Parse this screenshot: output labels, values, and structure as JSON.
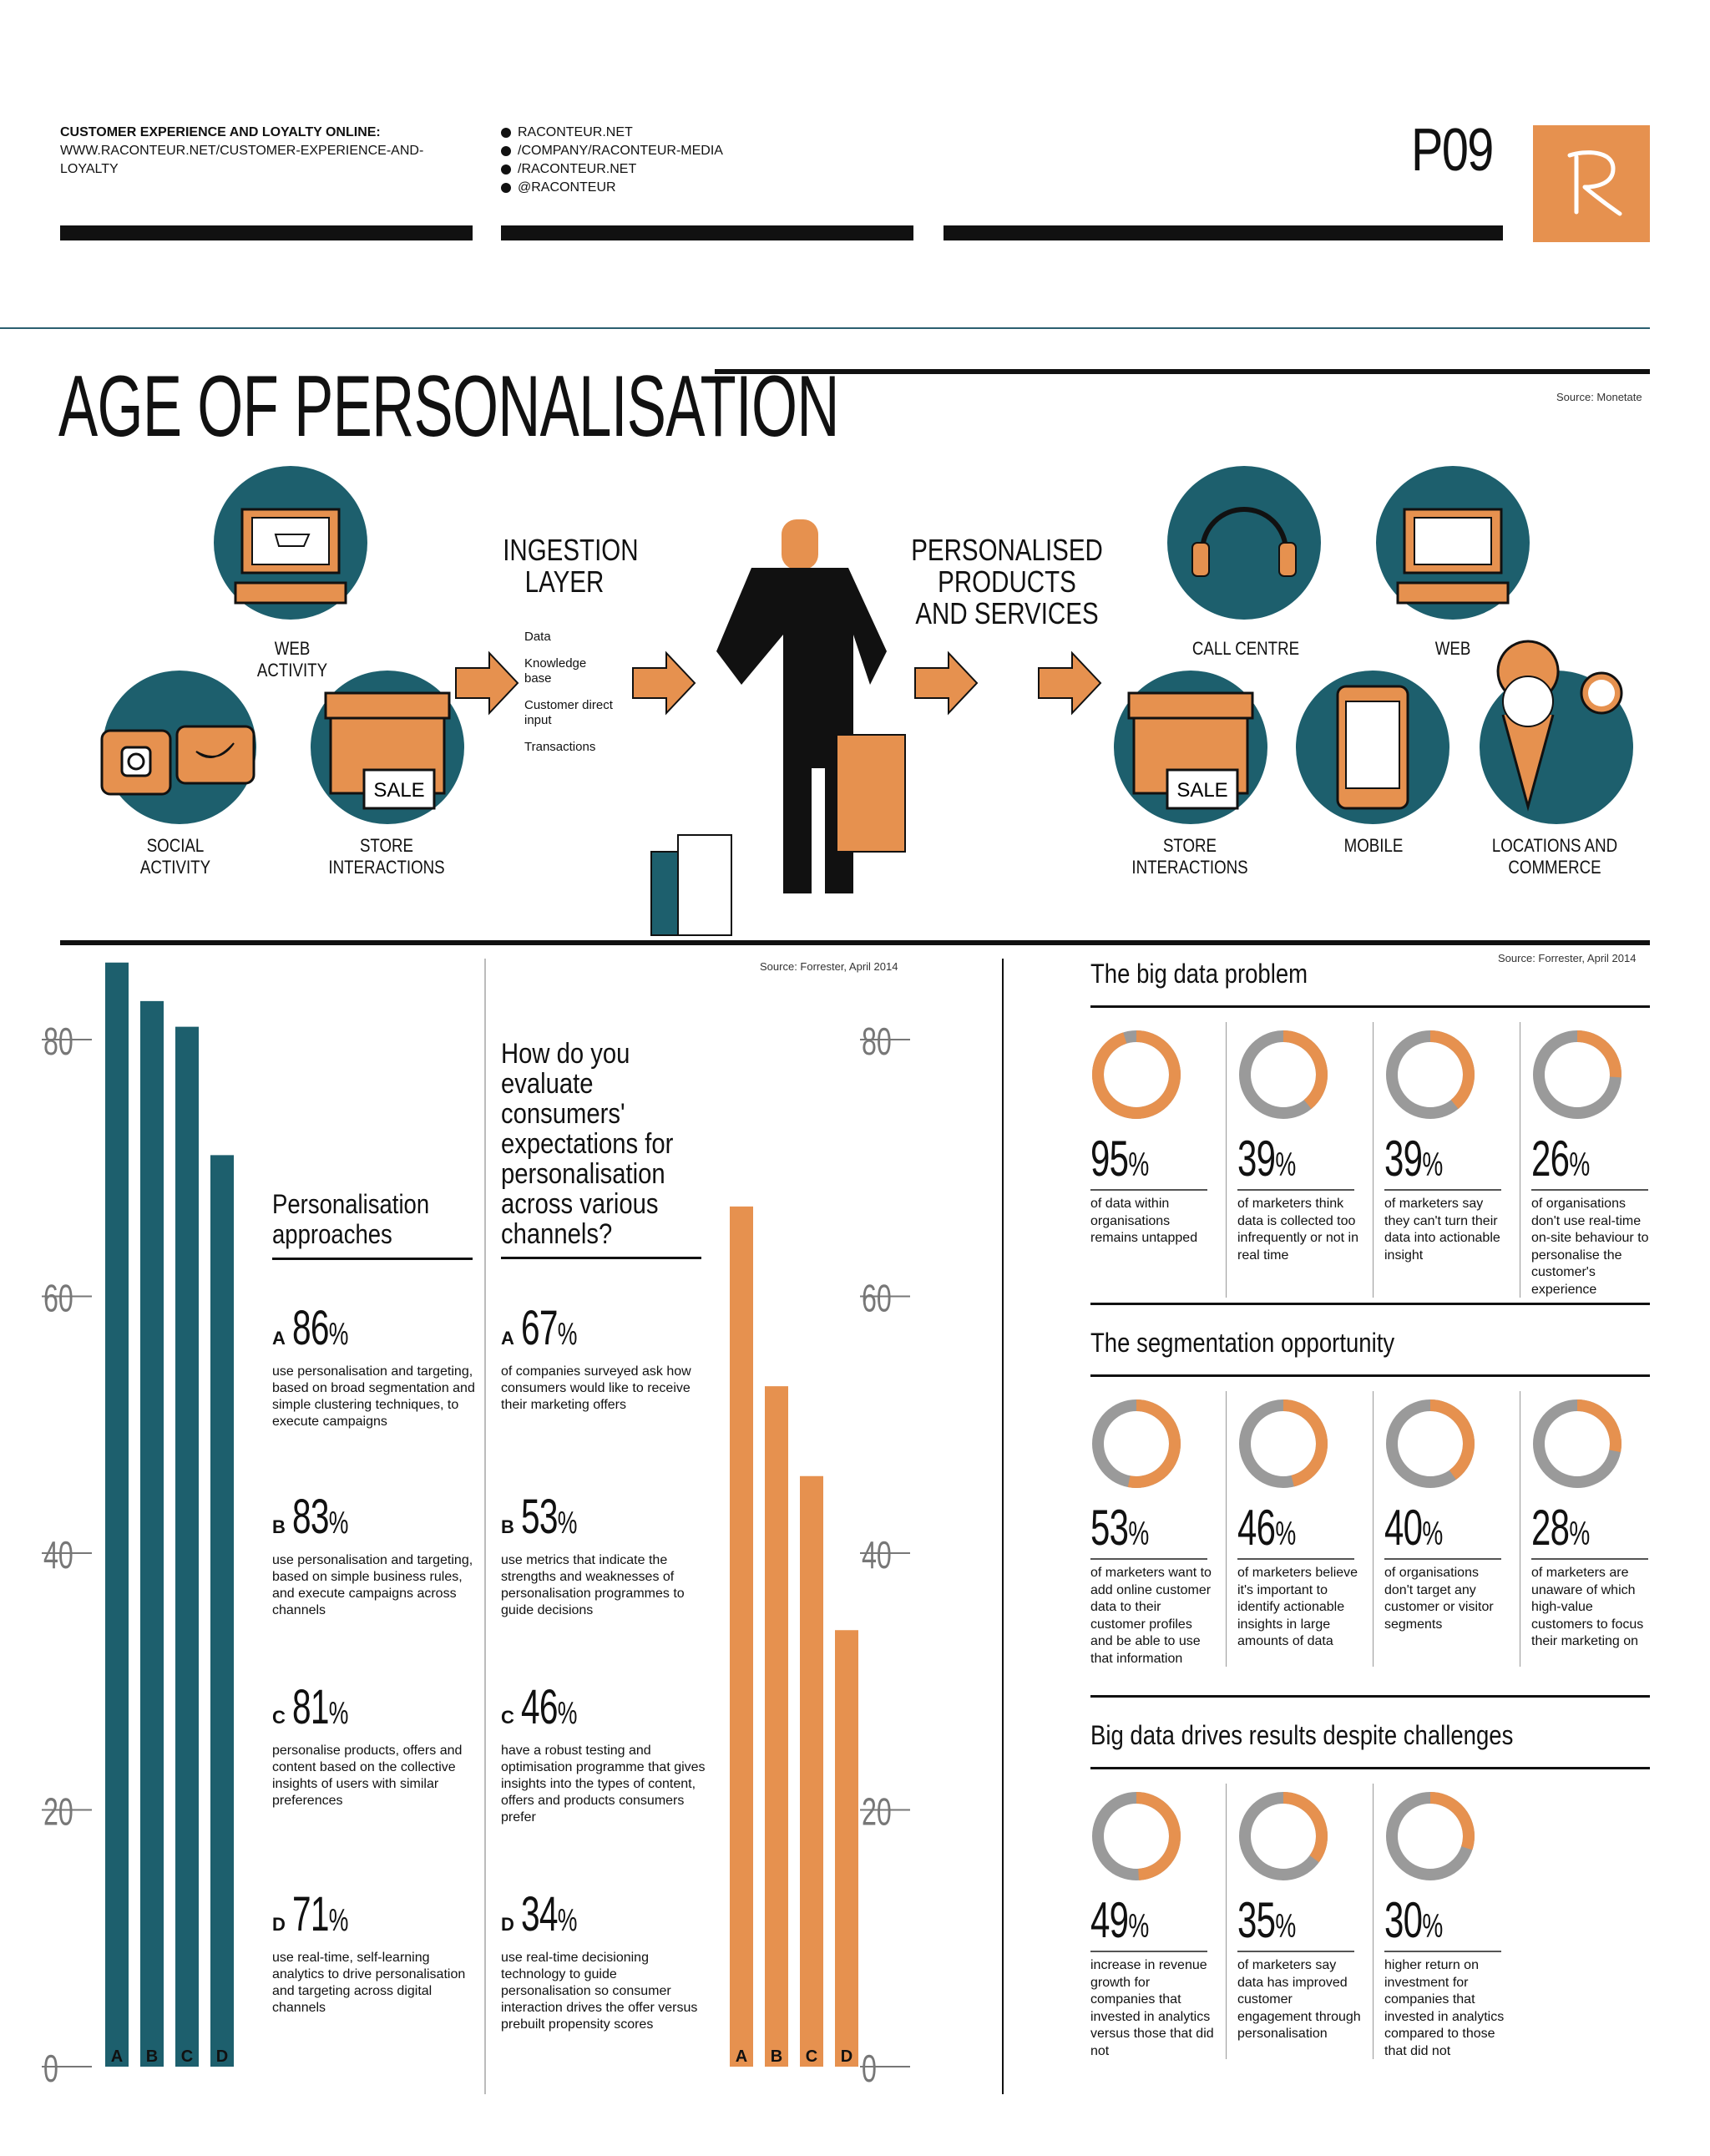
{
  "header": {
    "left_title": "CUSTOMER EXPERIENCE AND LOYALTY ONLINE:",
    "left_url": "WWW.RACONTEUR.NET/CUSTOMER-EXPERIENCE-AND-LOYALTY",
    "links": [
      "RACONTEUR.NET",
      "/COMPANY/RACONTEUR-MEDIA",
      "/RACONTEUR.NET",
      "@RACONTEUR"
    ],
    "page_number": "P09",
    "logo_letter": "R"
  },
  "title": "AGE OF PERSONALISATION",
  "source_top": "Source: Monetate",
  "flow": {
    "inputs": {
      "web": "WEB ACTIVITY",
      "social": "SOCIAL ACTIVITY",
      "store": "STORE INTERACTIONS"
    },
    "ingestion": {
      "title": "INGESTION LAYER",
      "items": [
        "Data",
        "Knowledge base",
        "Customer direct input",
        "Transactions"
      ]
    },
    "personalised": {
      "title": "PERSONALISED PRODUCTS AND SERVICES"
    },
    "outputs": {
      "call": "CALL CENTRE",
      "web": "WEB",
      "store": "STORE INTERACTIONS",
      "mobile": "MOBILE",
      "locations": "LOCATIONS AND COMMERCE"
    },
    "sale_sign": "SALE"
  },
  "colors": {
    "teal": "#1d5f6d",
    "orange": "#e6914f",
    "grey": "#9a9a9a"
  },
  "chart_data": [
    {
      "type": "bar",
      "title": "Personalisation approaches",
      "categories": [
        "A",
        "B",
        "C",
        "D"
      ],
      "values": [
        86,
        83,
        81,
        71
      ],
      "ylim": [
        0,
        80
      ],
      "yticks": [
        "0",
        "20",
        "40",
        "60",
        "80"
      ],
      "color": "#1d5f6d"
    },
    {
      "type": "bar",
      "title": "How do you evaluate consumers' expectations for personalisation across various channels?",
      "categories": [
        "A",
        "B",
        "C",
        "D"
      ],
      "values": [
        67,
        53,
        46,
        34
      ],
      "ylim": [
        0,
        80
      ],
      "yticks": [
        "0",
        "20",
        "40",
        "60",
        "80"
      ],
      "color": "#e6914f"
    }
  ],
  "source_forrester": "Source: Forrester, April 2014",
  "approaches": {
    "heading": "Personalisation approaches",
    "items": [
      {
        "letter": "A",
        "pct": "86",
        "desc": "use personalisation and targeting, based on broad segmentation and simple clustering techniques, to execute campaigns"
      },
      {
        "letter": "B",
        "pct": "83",
        "desc": "use personalisation and targeting, based on simple business rules, and execute campaigns across channels"
      },
      {
        "letter": "C",
        "pct": "81",
        "desc": "personalise products, offers and content based on the collective insights of users with similar preferences"
      },
      {
        "letter": "D",
        "pct": "71",
        "desc": "use real-time, self-learning analytics to drive personalisation and targeting across digital channels"
      }
    ]
  },
  "evaluate": {
    "heading": "How do you evaluate consumers' expectations for personalisation across various channels?",
    "items": [
      {
        "letter": "A",
        "pct": "67",
        "desc": "of companies surveyed ask how consumers would like to receive their marketing offers"
      },
      {
        "letter": "B",
        "pct": "53",
        "desc": "use metrics that indicate the strengths and weaknesses of personalisation programmes to guide decisions"
      },
      {
        "letter": "C",
        "pct": "46",
        "desc": "have a robust testing and optimisation programme that gives insights into the types of content, offers and products consumers prefer"
      },
      {
        "letter": "D",
        "pct": "34",
        "desc": "use real-time decisioning technology to guide personalisation so consumer interaction drives the offer versus prebuilt propensity scores"
      }
    ]
  },
  "pct_sign": "%",
  "donut_sections": [
    {
      "heading": "The big data problem",
      "items": [
        {
          "value": 95,
          "desc": "of data within organisations remains untapped"
        },
        {
          "value": 39,
          "desc": "of marketers think data is collected too infrequently or not in real time"
        },
        {
          "value": 39,
          "desc": "of marketers say they can't turn their data into actionable insight"
        },
        {
          "value": 26,
          "desc": "of organisations don't use real-time on-site behaviour to personalise the customer's experience"
        }
      ]
    },
    {
      "heading": "The segmentation opportunity",
      "items": [
        {
          "value": 53,
          "desc": "of marketers want to add online customer data to their customer profiles and be able to use that information"
        },
        {
          "value": 46,
          "desc": "of marketers believe it's important to identify actionable insights in large amounts of data"
        },
        {
          "value": 40,
          "desc": "of organisations don't target any customer or visitor segments"
        },
        {
          "value": 28,
          "desc": "of marketers are unaware of which high-value customers to focus their marketing on"
        }
      ]
    },
    {
      "heading": "Big data drives results despite challenges",
      "items": [
        {
          "value": 49,
          "desc": "increase in revenue growth for companies that invested in analytics versus those that did not"
        },
        {
          "value": 35,
          "desc": "of marketers say data has improved customer engagement through personalisation"
        },
        {
          "value": 30,
          "desc": "higher return on investment for companies that invested in analytics compared to those that did not"
        }
      ]
    }
  ]
}
